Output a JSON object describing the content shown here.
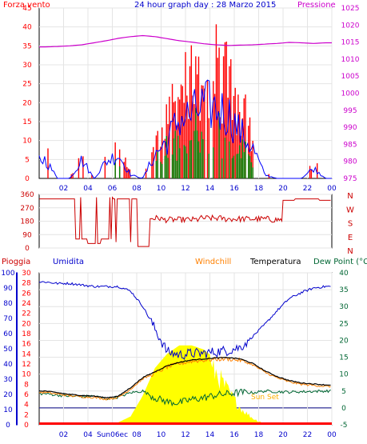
{
  "header": {
    "left": "Forza vento",
    "title": "24 hour graph day : 28 Marzo 2015",
    "right": "Pressione"
  },
  "colors": {
    "wind_gust": "#ff0000",
    "wind_avg": "#0000ff",
    "wind_low": "#008000",
    "pressure": "#cc00cc",
    "direction": "#cc0000",
    "humidity": "#0000cc",
    "windchill": "#ff8000",
    "temperature": "#000000",
    "dewpoint": "#006633",
    "sun": "#ffff00",
    "rain": "#ff0000"
  },
  "chart_data": [
    {
      "type": "bar",
      "name": "wind",
      "xticks": [
        "02",
        "04",
        "06",
        "08",
        "10",
        "12",
        "14",
        "16",
        "18",
        "20",
        "22",
        "00"
      ],
      "y_left_ticks": [
        "0",
        "5",
        "10",
        "15",
        "20",
        "25",
        "30",
        "35",
        "40",
        "45"
      ],
      "y_right_ticks": [
        "975",
        "980",
        "985",
        "990",
        "995",
        "1000",
        "1005",
        "1010",
        "1015",
        "1020",
        "1025"
      ],
      "ylim_left": [
        0,
        45
      ],
      "ylim_right": [
        975,
        1025
      ],
      "gust_hourly_peak": [
        11,
        0,
        0,
        11,
        0,
        10,
        14,
        2,
        0,
        14,
        22,
        35,
        37,
        43,
        41,
        38,
        27,
        18,
        2,
        0,
        0,
        0,
        6,
        0
      ],
      "pressure_hourly": [
        1013.6,
        1013.7,
        1013.9,
        1014.2,
        1014.8,
        1015.4,
        1016.1,
        1016.6,
        1016.9,
        1016.6,
        1016.0,
        1015.4,
        1015.0,
        1014.5,
        1014.2,
        1014.0,
        1014.1,
        1014.2,
        1014.4,
        1014.6,
        1014.9,
        1014.8,
        1014.6,
        1014.8
      ]
    },
    {
      "type": "line",
      "name": "direction",
      "y_left_ticks": [
        "0",
        "90",
        "180",
        "270",
        "360"
      ],
      "ylim": [
        0,
        360
      ],
      "compass_labels": [
        "N",
        "W",
        "S",
        "E",
        "N"
      ],
      "hourly_direction": [
        330,
        330,
        330,
        60,
        30,
        60,
        330,
        330,
        10,
        200,
        190,
        190,
        190,
        200,
        200,
        195,
        195,
        195,
        195,
        190,
        320,
        330,
        330,
        320
      ]
    },
    {
      "type": "line",
      "name": "meteo",
      "legend": [
        "Pioggia",
        "Umidita",
        "Windchill",
        "Temperatura",
        "Dew Point (°C"
      ],
      "xticks": [
        "02",
        "04",
        "Sun06ec",
        "08",
        "10",
        "12",
        "14",
        "16",
        "18",
        "20",
        "22",
        "00"
      ],
      "humidity_ticks": [
        "0",
        "10",
        "20",
        "30",
        "40",
        "50",
        "60",
        "70",
        "80",
        "90",
        "100"
      ],
      "rain_ticks": [
        "0",
        "2",
        "4",
        "6",
        "8",
        "10",
        "12",
        "14",
        "16",
        "18",
        "20",
        "22",
        "24",
        "26",
        "28",
        "30"
      ],
      "temp_ticks": [
        "-5",
        "0",
        "5",
        "10",
        "15",
        "20",
        "25",
        "30",
        "35",
        "40"
      ],
      "ylim_humidity": [
        0,
        100
      ],
      "ylim_temp": [
        -5,
        40
      ],
      "sunrise_label": "Sun06ec",
      "sunset_label": "Sun Set",
      "humidity_hourly": [
        94,
        93,
        93,
        92,
        91,
        91,
        91,
        88,
        78,
        63,
        48,
        46,
        47,
        47,
        48,
        49,
        51,
        58,
        66,
        75,
        83,
        87,
        90,
        91
      ],
      "temperature_hourly": [
        5,
        4.5,
        4,
        3.7,
        3.5,
        3,
        3.5,
        6,
        9,
        10.7,
        12.5,
        13.5,
        14.2,
        14.5,
        14.8,
        14.9,
        14.5,
        13.2,
        11,
        9.3,
        8.1,
        7.4,
        7.1,
        6.8
      ],
      "dewpoint_hourly": [
        4.2,
        3.8,
        3.5,
        3.4,
        3.5,
        2.7,
        3.2,
        4.5,
        5,
        3,
        1.8,
        1.5,
        2.5,
        3,
        3.8,
        4.2,
        4.6,
        4.5,
        5,
        4.8,
        4.7,
        4.8,
        4.9,
        5
      ],
      "sun_hourly_percent": [
        0,
        0,
        0,
        0,
        0,
        0,
        3,
        10,
        35,
        68,
        85,
        95,
        95,
        90,
        78,
        50,
        25,
        10,
        0,
        0,
        0,
        0,
        0,
        0
      ],
      "rain_hourly": [
        0,
        0,
        0,
        0,
        0,
        0,
        0,
        0,
        0,
        0,
        0,
        0,
        0,
        0,
        0,
        0,
        0,
        0,
        0,
        0,
        0,
        0,
        0,
        0
      ]
    }
  ]
}
